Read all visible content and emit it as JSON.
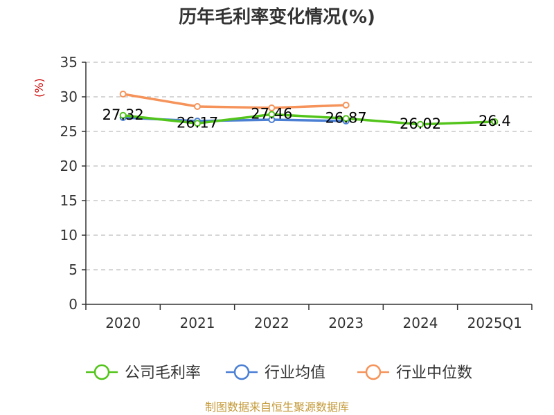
{
  "chart_data": {
    "type": "line",
    "title": "历年毛利率变化情况(%)",
    "ylabel": "(%)",
    "categories": [
      "2020",
      "2021",
      "2022",
      "2023",
      "2024",
      "2025Q1"
    ],
    "ylim": [
      0,
      35
    ],
    "yticks": [
      0,
      5,
      10,
      15,
      20,
      25,
      30,
      35
    ],
    "grid": true,
    "legend_position": "bottom",
    "series": [
      {
        "name": "公司毛利率",
        "color": "#52c41a",
        "values": [
          27.32,
          26.17,
          27.46,
          26.87,
          26.02,
          26.4
        ],
        "labels": [
          "27.32",
          "26.17",
          "27.46",
          "26.87",
          "26.02",
          "26.4"
        ]
      },
      {
        "name": "行业均值",
        "color": "#4a7fd4",
        "values": [
          27.0,
          26.5,
          26.7,
          26.5,
          null,
          null
        ]
      },
      {
        "name": "行业中位数",
        "color": "#f5935a",
        "values": [
          30.4,
          28.6,
          28.4,
          28.8,
          null,
          null
        ]
      }
    ]
  },
  "source": "制图数据来自恒生聚源数据库"
}
